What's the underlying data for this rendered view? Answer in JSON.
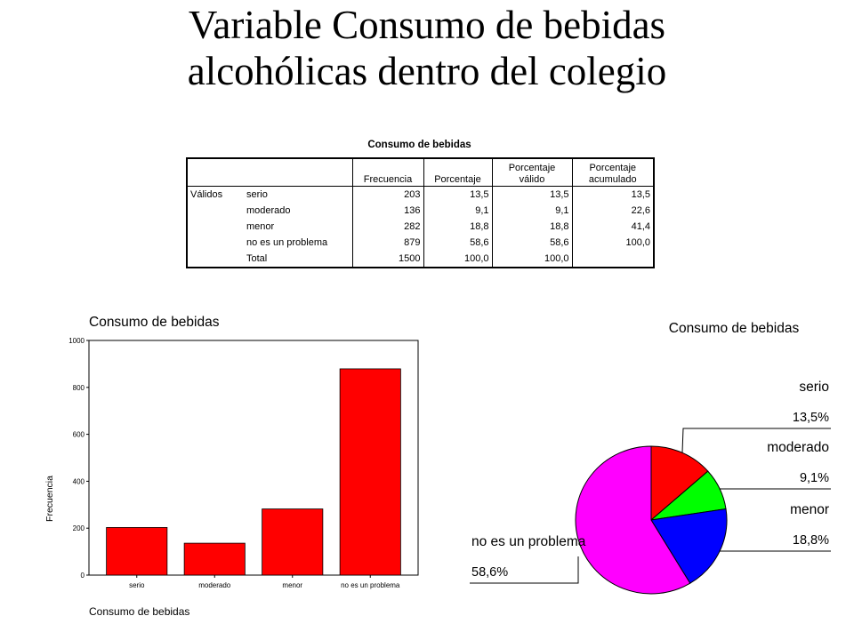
{
  "page_title_line1": "Variable Consumo de bebidas",
  "page_title_line2": "alcohólicas dentro del colegio",
  "table": {
    "title": "Consumo de bebidas",
    "columns": [
      "Frecuencia",
      "Porcentaje",
      "Porcentaje válido",
      "Porcentaje acumulado"
    ],
    "columns_line1": [
      "",
      "",
      "Porcentaje",
      "Porcentaje"
    ],
    "columns_line2": [
      "Frecuencia",
      "Porcentaje",
      "válido",
      "acumulado"
    ],
    "group_label": "Válidos",
    "rows": [
      {
        "label": "serio",
        "frecuencia": "203",
        "porcentaje": "13,5",
        "valido": "13,5",
        "acumulado": "13,5"
      },
      {
        "label": "moderado",
        "frecuencia": "136",
        "porcentaje": "9,1",
        "valido": "9,1",
        "acumulado": "22,6"
      },
      {
        "label": "menor",
        "frecuencia": "282",
        "porcentaje": "18,8",
        "valido": "18,8",
        "acumulado": "41,4"
      },
      {
        "label": "no es un problema",
        "frecuencia": "879",
        "porcentaje": "58,6",
        "valido": "58,6",
        "acumulado": "100,0"
      },
      {
        "label": "Total",
        "frecuencia": "1500",
        "porcentaje": "100,0",
        "valido": "100,0",
        "acumulado": ""
      }
    ]
  },
  "chart_data": [
    {
      "type": "bar",
      "title": "Consumo de bebidas",
      "xlabel": "Consumo de bebidas",
      "ylabel": "Frecuencia",
      "categories": [
        "serio",
        "moderado",
        "menor",
        "no es un problema"
      ],
      "values": [
        203,
        136,
        282,
        879
      ],
      "ylim": [
        0,
        1000
      ],
      "yticks": [
        0,
        200,
        400,
        600,
        800,
        1000
      ],
      "grid": false,
      "bar_color": "#ff0000"
    },
    {
      "type": "pie",
      "title": "Consumo de bebidas",
      "labels": [
        "serio",
        "moderado",
        "menor",
        "no es un problema"
      ],
      "values": [
        13.5,
        9.1,
        18.8,
        58.6
      ],
      "value_labels": [
        "13,5%",
        "9,1%",
        "18,8%",
        "58,6%"
      ],
      "colors": [
        "#ff0000",
        "#00ff00",
        "#0000ff",
        "#ff00ff"
      ]
    }
  ]
}
